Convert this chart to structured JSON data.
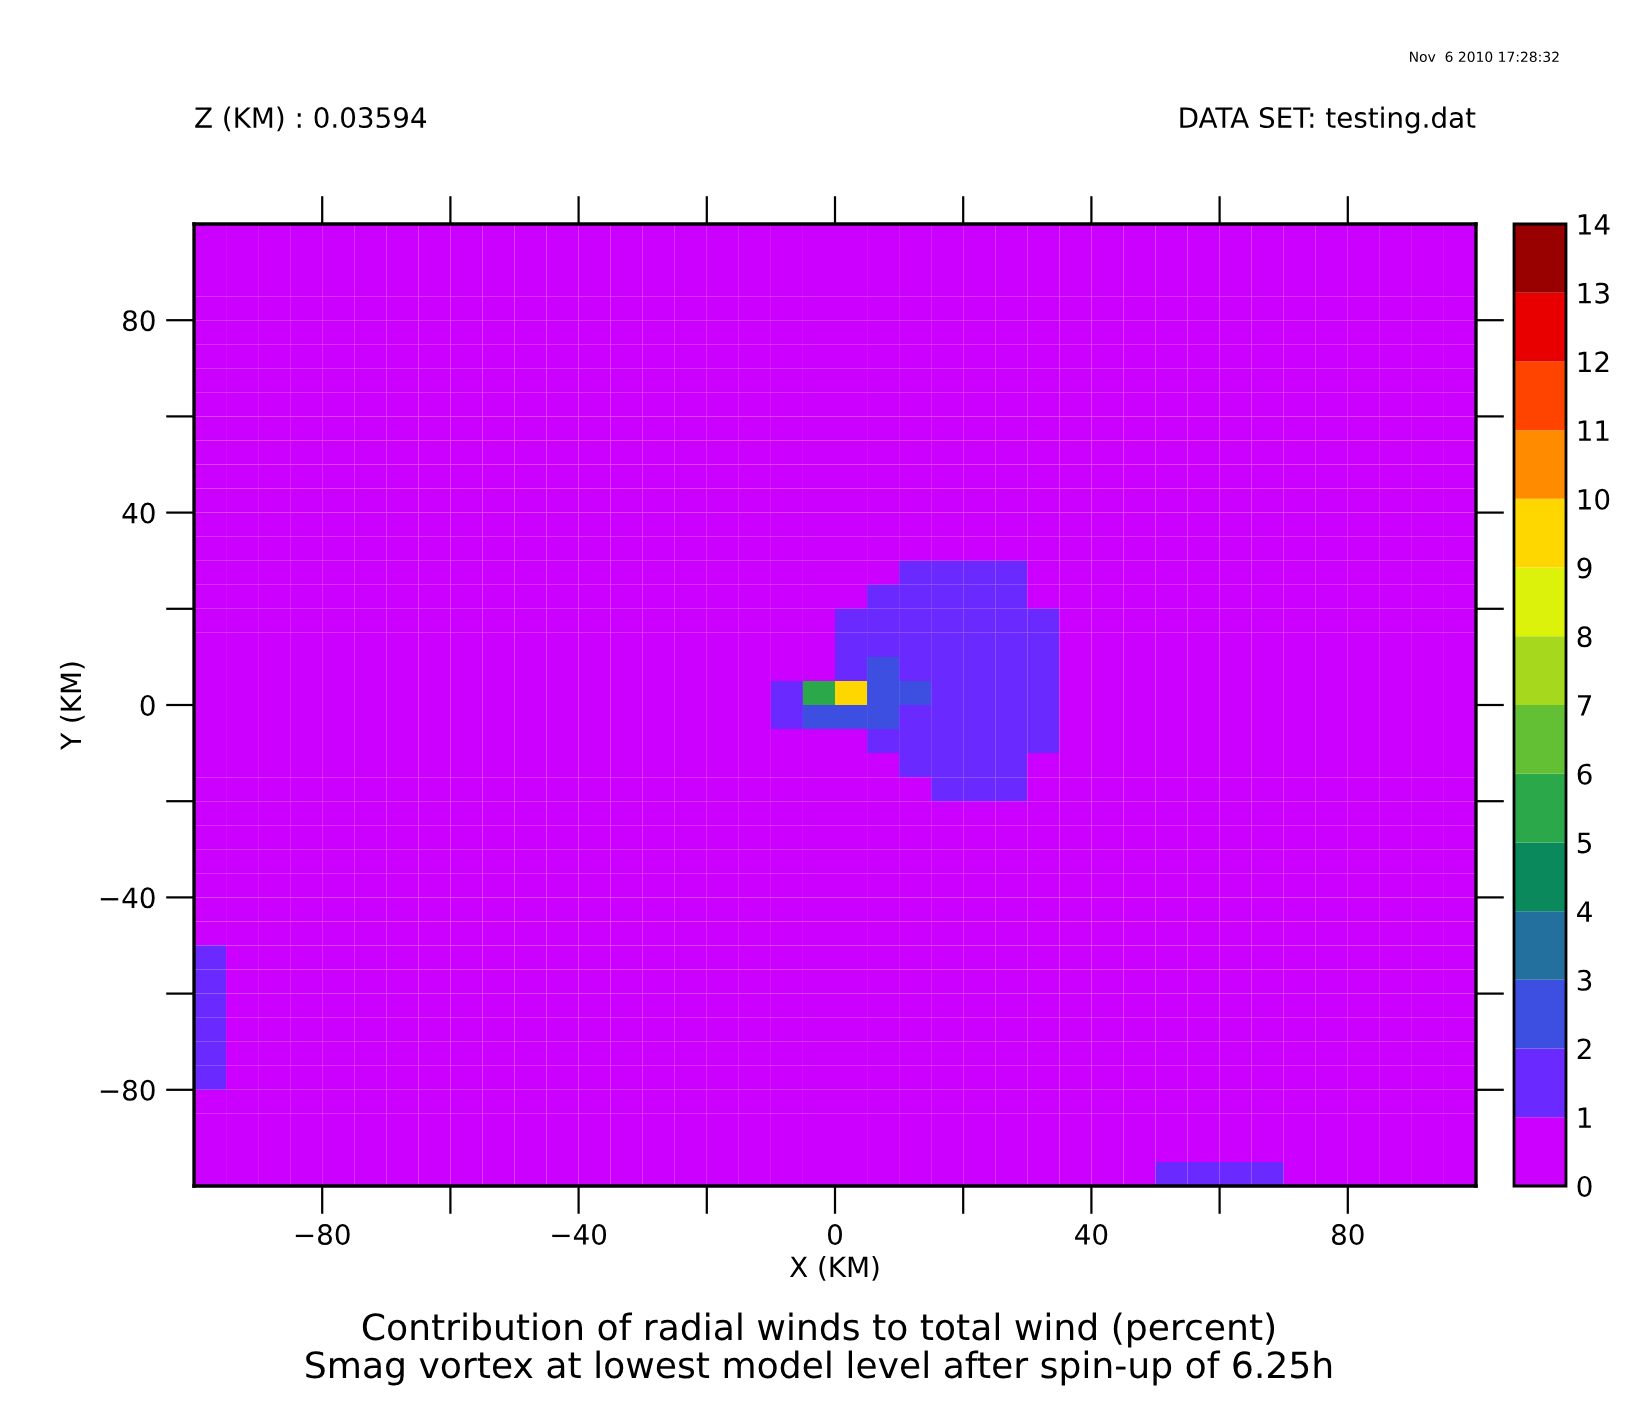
{
  "chart_data": {
    "type": "heatmap",
    "title": "Contribution of radial winds to total wind (percent)",
    "subtitle": "Smag vortex at lowest model level after spin-up of 6.25h",
    "xlabel": "X (KM)",
    "ylabel": "Y (KM)",
    "annotations": [
      "Z (KM) : 0.03594",
      "DATA SET: testing.dat",
      "Nov  6 2010 17:28:32"
    ],
    "x": [
      -97.5,
      -92.5,
      -87.5,
      -82.5,
      -77.5,
      -72.5,
      -67.5,
      -62.5,
      -57.5,
      -52.5,
      -47.5,
      -42.5,
      -37.5,
      -32.5,
      -27.5,
      -22.5,
      -17.5,
      -12.5,
      -7.5,
      -2.5,
      2.5,
      7.5,
      12.5,
      17.5,
      22.5,
      27.5,
      32.5,
      37.5,
      42.5,
      47.5,
      52.5,
      57.5,
      62.5,
      67.5,
      72.5,
      77.5,
      82.5,
      87.5,
      92.5,
      97.5
    ],
    "y": [
      97.5,
      92.5,
      87.5,
      82.5,
      77.5,
      72.5,
      67.5,
      62.5,
      57.5,
      52.5,
      47.5,
      42.5,
      37.5,
      32.5,
      27.5,
      22.5,
      17.5,
      12.5,
      7.5,
      2.5,
      -2.5,
      -7.5,
      -12.5,
      -17.5,
      -22.5,
      -27.5,
      -32.5,
      -37.5,
      -42.5,
      -47.5,
      -52.5,
      -57.5,
      -62.5,
      -67.5,
      -72.5,
      -77.5,
      -82.5,
      -87.5,
      -92.5,
      -97.5
    ],
    "cells": [
      [
        0,
        0,
        0,
        0,
        0,
        0,
        0,
        0,
        0,
        0,
        0,
        0,
        0,
        0,
        0,
        0,
        0,
        0,
        0,
        0,
        0,
        0,
        0,
        0,
        0,
        0,
        0,
        0,
        0,
        0,
        0,
        0,
        0,
        0,
        0,
        0,
        0,
        0,
        0,
        0
      ],
      [
        0,
        0,
        0,
        0,
        0,
        0,
        0,
        0,
        0,
        0,
        0,
        0,
        0,
        0,
        0,
        0,
        0,
        0,
        0,
        0,
        0,
        0,
        0,
        0,
        0,
        0,
        0,
        0,
        0,
        0,
        0,
        0,
        0,
        0,
        0,
        0,
        0,
        0,
        0,
        0
      ],
      [
        0,
        0,
        0,
        0,
        0,
        0,
        0,
        0,
        0,
        0,
        0,
        0,
        0,
        0,
        0,
        0,
        0,
        0,
        0,
        0,
        0,
        0,
        0,
        0,
        0,
        0,
        0,
        0,
        0,
        0,
        0,
        0,
        0,
        0,
        0,
        0,
        0,
        0,
        0,
        0
      ],
      [
        0,
        0,
        0,
        0,
        0,
        0,
        0,
        0,
        0,
        0,
        0,
        0,
        0,
        0,
        0,
        0,
        0,
        0,
        0,
        0,
        0,
        0,
        0,
        0,
        0,
        0,
        0,
        0,
        0,
        0,
        0,
        0,
        0,
        0,
        0,
        0,
        0,
        0,
        0,
        0
      ],
      [
        0,
        0,
        0,
        0,
        0,
        0,
        0,
        0,
        0,
        0,
        0,
        0,
        0,
        0,
        0,
        0,
        0,
        0,
        0,
        0,
        0,
        0,
        0,
        0,
        0,
        0,
        0,
        0,
        0,
        0,
        0,
        0,
        0,
        0,
        0,
        0,
        0,
        0,
        0,
        0
      ],
      [
        0,
        0,
        0,
        0,
        0,
        0,
        0,
        0,
        0,
        0,
        0,
        0,
        0,
        0,
        0,
        0,
        0,
        0,
        0,
        0,
        0,
        0,
        0,
        0,
        0,
        0,
        0,
        0,
        0,
        0,
        0,
        0,
        0,
        0,
        0,
        0,
        0,
        0,
        0,
        0
      ],
      [
        0,
        0,
        0,
        0,
        0,
        0,
        0,
        0,
        0,
        0,
        0,
        0,
        0,
        0,
        0,
        0,
        0,
        0,
        0,
        0,
        0,
        0,
        0,
        0,
        0,
        0,
        0,
        0,
        0,
        0,
        0,
        0,
        0,
        0,
        0,
        0,
        0,
        0,
        0,
        0
      ],
      [
        0,
        0,
        0,
        0,
        0,
        0,
        0,
        0,
        0,
        0,
        0,
        0,
        0,
        0,
        0,
        0,
        0,
        0,
        0,
        0,
        0,
        0,
        0,
        0,
        0,
        0,
        0,
        0,
        0,
        0,
        0,
        0,
        0,
        0,
        0,
        0,
        0,
        0,
        0,
        0
      ],
      [
        0,
        0,
        0,
        0,
        0,
        0,
        0,
        0,
        0,
        0,
        0,
        0,
        0,
        0,
        0,
        0,
        0,
        0,
        0,
        0,
        0,
        0,
        0,
        0,
        0,
        0,
        0,
        0,
        0,
        0,
        0,
        0,
        0,
        0,
        0,
        0,
        0,
        0,
        0,
        0
      ],
      [
        0,
        0,
        0,
        0,
        0,
        0,
        0,
        0,
        0,
        0,
        0,
        0,
        0,
        0,
        0,
        0,
        0,
        0,
        0,
        0,
        0,
        0,
        0,
        0,
        0,
        0,
        0,
        0,
        0,
        0,
        0,
        0,
        0,
        0,
        0,
        0,
        0,
        0,
        0,
        0
      ],
      [
        0,
        0,
        0,
        0,
        0,
        0,
        0,
        0,
        0,
        0,
        0,
        0,
        0,
        0,
        0,
        0,
        0,
        0,
        0,
        0,
        0,
        0,
        0,
        0,
        0,
        0,
        0,
        0,
        0,
        0,
        0,
        0,
        0,
        0,
        0,
        0,
        0,
        0,
        0,
        0
      ],
      [
        0,
        0,
        0,
        0,
        0,
        0,
        0,
        0,
        0,
        0,
        0,
        0,
        0,
        0,
        0,
        0,
        0,
        0,
        0,
        0,
        0,
        0,
        0,
        0,
        0,
        0,
        0,
        0,
        0,
        0,
        0,
        0,
        0,
        0,
        0,
        0,
        0,
        0,
        0,
        0
      ],
      [
        0,
        0,
        0,
        0,
        0,
        0,
        0,
        0,
        0,
        0,
        0,
        0,
        0,
        0,
        0,
        0,
        0,
        0,
        0,
        0,
        0,
        0,
        0,
        0,
        0,
        0,
        0,
        0,
        0,
        0,
        0,
        0,
        0,
        0,
        0,
        0,
        0,
        0,
        0,
        0
      ],
      [
        0,
        0,
        0,
        0,
        0,
        0,
        0,
        0,
        0,
        0,
        0,
        0,
        0,
        0,
        0,
        0,
        0,
        0,
        0,
        0,
        0,
        0,
        0,
        0,
        0,
        0,
        0,
        0,
        0,
        0,
        0,
        0,
        0,
        0,
        0,
        0,
        0,
        0,
        0,
        0
      ],
      [
        0,
        0,
        0,
        0,
        0,
        0,
        0,
        0,
        0,
        0,
        0,
        0,
        0,
        0,
        0,
        0,
        0,
        0,
        0,
        0,
        0,
        0,
        1,
        1,
        1,
        1,
        0,
        0,
        0,
        0,
        0,
        0,
        0,
        0,
        0,
        0,
        0,
        0,
        0,
        0
      ],
      [
        0,
        0,
        0,
        0,
        0,
        0,
        0,
        0,
        0,
        0,
        0,
        0,
        0,
        0,
        0,
        0,
        0,
        0,
        0,
        0,
        0,
        1,
        1,
        1,
        1,
        1,
        0,
        0,
        0,
        0,
        0,
        0,
        0,
        0,
        0,
        0,
        0,
        0,
        0,
        0
      ],
      [
        0,
        0,
        0,
        0,
        0,
        0,
        0,
        0,
        0,
        0,
        0,
        0,
        0,
        0,
        0,
        0,
        0,
        0,
        0,
        0,
        1,
        1,
        1,
        1,
        1,
        1,
        1,
        0,
        0,
        0,
        0,
        0,
        0,
        0,
        0,
        0,
        0,
        0,
        0,
        0
      ],
      [
        0,
        0,
        0,
        0,
        0,
        0,
        0,
        0,
        0,
        0,
        0,
        0,
        0,
        0,
        0,
        0,
        0,
        0,
        0,
        0,
        1,
        1,
        1,
        1,
        1,
        1,
        1,
        0,
        0,
        0,
        0,
        0,
        0,
        0,
        0,
        0,
        0,
        0,
        0,
        0
      ],
      [
        0,
        0,
        0,
        0,
        0,
        0,
        0,
        0,
        0,
        0,
        0,
        0,
        0,
        0,
        0,
        0,
        0,
        0,
        0,
        0,
        1,
        2,
        1,
        1,
        1,
        1,
        1,
        0,
        0,
        0,
        0,
        0,
        0,
        0,
        0,
        0,
        0,
        0,
        0,
        0
      ],
      [
        0,
        0,
        0,
        0,
        0,
        0,
        0,
        0,
        0,
        0,
        0,
        0,
        0,
        0,
        0,
        0,
        0,
        0,
        1,
        5,
        9,
        2,
        2,
        1,
        1,
        1,
        1,
        0,
        0,
        0,
        0,
        0,
        0,
        0,
        0,
        0,
        0,
        0,
        0,
        0
      ],
      [
        0,
        0,
        0,
        0,
        0,
        0,
        0,
        0,
        0,
        0,
        0,
        0,
        0,
        0,
        0,
        0,
        0,
        0,
        1,
        2,
        2,
        2,
        1,
        1,
        1,
        1,
        1,
        0,
        0,
        0,
        0,
        0,
        0,
        0,
        0,
        0,
        0,
        0,
        0,
        0
      ],
      [
        0,
        0,
        0,
        0,
        0,
        0,
        0,
        0,
        0,
        0,
        0,
        0,
        0,
        0,
        0,
        0,
        0,
        0,
        0,
        0,
        0,
        1,
        1,
        1,
        1,
        1,
        1,
        0,
        0,
        0,
        0,
        0,
        0,
        0,
        0,
        0,
        0,
        0,
        0,
        0
      ],
      [
        0,
        0,
        0,
        0,
        0,
        0,
        0,
        0,
        0,
        0,
        0,
        0,
        0,
        0,
        0,
        0,
        0,
        0,
        0,
        0,
        0,
        0,
        1,
        1,
        1,
        1,
        0,
        0,
        0,
        0,
        0,
        0,
        0,
        0,
        0,
        0,
        0,
        0,
        0,
        0
      ],
      [
        0,
        0,
        0,
        0,
        0,
        0,
        0,
        0,
        0,
        0,
        0,
        0,
        0,
        0,
        0,
        0,
        0,
        0,
        0,
        0,
        0,
        0,
        0,
        1,
        1,
        1,
        0,
        0,
        0,
        0,
        0,
        0,
        0,
        0,
        0,
        0,
        0,
        0,
        0,
        0
      ],
      [
        0,
        0,
        0,
        0,
        0,
        0,
        0,
        0,
        0,
        0,
        0,
        0,
        0,
        0,
        0,
        0,
        0,
        0,
        0,
        0,
        0,
        0,
        0,
        0,
        0,
        0,
        0,
        0,
        0,
        0,
        0,
        0,
        0,
        0,
        0,
        0,
        0,
        0,
        0,
        0
      ],
      [
        0,
        0,
        0,
        0,
        0,
        0,
        0,
        0,
        0,
        0,
        0,
        0,
        0,
        0,
        0,
        0,
        0,
        0,
        0,
        0,
        0,
        0,
        0,
        0,
        0,
        0,
        0,
        0,
        0,
        0,
        0,
        0,
        0,
        0,
        0,
        0,
        0,
        0,
        0,
        0
      ],
      [
        0,
        0,
        0,
        0,
        0,
        0,
        0,
        0,
        0,
        0,
        0,
        0,
        0,
        0,
        0,
        0,
        0,
        0,
        0,
        0,
        0,
        0,
        0,
        0,
        0,
        0,
        0,
        0,
        0,
        0,
        0,
        0,
        0,
        0,
        0,
        0,
        0,
        0,
        0,
        0
      ],
      [
        0,
        0,
        0,
        0,
        0,
        0,
        0,
        0,
        0,
        0,
        0,
        0,
        0,
        0,
        0,
        0,
        0,
        0,
        0,
        0,
        0,
        0,
        0,
        0,
        0,
        0,
        0,
        0,
        0,
        0,
        0,
        0,
        0,
        0,
        0,
        0,
        0,
        0,
        0,
        0
      ],
      [
        0,
        0,
        0,
        0,
        0,
        0,
        0,
        0,
        0,
        0,
        0,
        0,
        0,
        0,
        0,
        0,
        0,
        0,
        0,
        0,
        0,
        0,
        0,
        0,
        0,
        0,
        0,
        0,
        0,
        0,
        0,
        0,
        0,
        0,
        0,
        0,
        0,
        0,
        0,
        0
      ],
      [
        0,
        0,
        0,
        0,
        0,
        0,
        0,
        0,
        0,
        0,
        0,
        0,
        0,
        0,
        0,
        0,
        0,
        0,
        0,
        0,
        0,
        0,
        0,
        0,
        0,
        0,
        0,
        0,
        0,
        0,
        0,
        0,
        0,
        0,
        0,
        0,
        0,
        0,
        0,
        0
      ],
      [
        1,
        0,
        0,
        0,
        0,
        0,
        0,
        0,
        0,
        0,
        0,
        0,
        0,
        0,
        0,
        0,
        0,
        0,
        0,
        0,
        0,
        0,
        0,
        0,
        0,
        0,
        0,
        0,
        0,
        0,
        0,
        0,
        0,
        0,
        0,
        0,
        0,
        0,
        0,
        0
      ],
      [
        1,
        0,
        0,
        0,
        0,
        0,
        0,
        0,
        0,
        0,
        0,
        0,
        0,
        0,
        0,
        0,
        0,
        0,
        0,
        0,
        0,
        0,
        0,
        0,
        0,
        0,
        0,
        0,
        0,
        0,
        0,
        0,
        0,
        0,
        0,
        0,
        0,
        0,
        0,
        0
      ],
      [
        1,
        0,
        0,
        0,
        0,
        0,
        0,
        0,
        0,
        0,
        0,
        0,
        0,
        0,
        0,
        0,
        0,
        0,
        0,
        0,
        0,
        0,
        0,
        0,
        0,
        0,
        0,
        0,
        0,
        0,
        0,
        0,
        0,
        0,
        0,
        0,
        0,
        0,
        0,
        0
      ],
      [
        1,
        0,
        0,
        0,
        0,
        0,
        0,
        0,
        0,
        0,
        0,
        0,
        0,
        0,
        0,
        0,
        0,
        0,
        0,
        0,
        0,
        0,
        0,
        0,
        0,
        0,
        0,
        0,
        0,
        0,
        0,
        0,
        0,
        0,
        0,
        0,
        0,
        0,
        0,
        0
      ],
      [
        1,
        0,
        0,
        0,
        0,
        0,
        0,
        0,
        0,
        0,
        0,
        0,
        0,
        0,
        0,
        0,
        0,
        0,
        0,
        0,
        0,
        0,
        0,
        0,
        0,
        0,
        0,
        0,
        0,
        0,
        0,
        0,
        0,
        0,
        0,
        0,
        0,
        0,
        0,
        0
      ],
      [
        1,
        0,
        0,
        0,
        0,
        0,
        0,
        0,
        0,
        0,
        0,
        0,
        0,
        0,
        0,
        0,
        0,
        0,
        0,
        0,
        0,
        0,
        0,
        0,
        0,
        0,
        0,
        0,
        0,
        0,
        0,
        0,
        0,
        0,
        0,
        0,
        0,
        0,
        0,
        0
      ],
      [
        0,
        0,
        0,
        0,
        0,
        0,
        0,
        0,
        0,
        0,
        0,
        0,
        0,
        0,
        0,
        0,
        0,
        0,
        0,
        0,
        0,
        0,
        0,
        0,
        0,
        0,
        0,
        0,
        0,
        0,
        0,
        0,
        0,
        0,
        0,
        0,
        0,
        0,
        0,
        0
      ],
      [
        0,
        0,
        0,
        0,
        0,
        0,
        0,
        0,
        0,
        0,
        0,
        0,
        0,
        0,
        0,
        0,
        0,
        0,
        0,
        0,
        0,
        0,
        0,
        0,
        0,
        0,
        0,
        0,
        0,
        0,
        0,
        0,
        0,
        0,
        0,
        0,
        0,
        0,
        0,
        0
      ],
      [
        0,
        0,
        0,
        0,
        0,
        0,
        0,
        0,
        0,
        0,
        0,
        0,
        0,
        0,
        0,
        0,
        0,
        0,
        0,
        0,
        0,
        0,
        0,
        0,
        0,
        0,
        0,
        0,
        0,
        0,
        0,
        0,
        0,
        0,
        0,
        0,
        0,
        0,
        0,
        0
      ],
      [
        0,
        0,
        0,
        0,
        0,
        0,
        0,
        0,
        0,
        0,
        0,
        0,
        0,
        0,
        0,
        0,
        0,
        0,
        0,
        0,
        0,
        0,
        0,
        0,
        0,
        0,
        0,
        0,
        0,
        0,
        1,
        1,
        1,
        1,
        0,
        0,
        0,
        0,
        0,
        0
      ]
    ],
    "colors": [
      "#cc00ff",
      "#6a29ff",
      "#3d4fe0",
      "#236f9e",
      "#0a8a5c",
      "#2aa84a",
      "#63c035",
      "#a6d81e",
      "#ddf20a",
      "#ffd700",
      "#ff8c00",
      "#ff4400",
      "#e80000",
      "#990000"
    ],
    "clim": [
      0,
      14
    ],
    "cticks": [
      0,
      1,
      2,
      3,
      4,
      5,
      6,
      7,
      8,
      9,
      10,
      11,
      12,
      13,
      14
    ],
    "xlim": [
      -100,
      100
    ],
    "xticks": [
      -80,
      {
        "value": -60,
        "label": null
      },
      -40,
      {
        "value": -20,
        "label": null
      },
      0,
      {
        "value": 20,
        "label": null
      },
      40,
      {
        "value": 60,
        "label": null
      },
      80
    ],
    "ylim": [
      -100,
      100
    ],
    "yticks": [
      -80,
      {
        "value": -60,
        "label": null
      },
      -40,
      {
        "value": -20,
        "label": null
      },
      0,
      {
        "value": 20,
        "label": null
      },
      40,
      {
        "value": 60,
        "label": null
      },
      80
    ],
    "grid": false
  }
}
